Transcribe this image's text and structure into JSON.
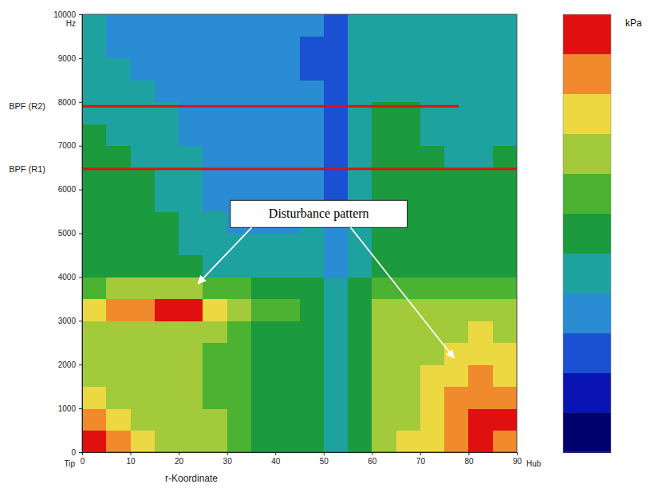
{
  "chart_data": {
    "type": "heatmap",
    "x_label": "r-Koordinate",
    "y_label": "Hz",
    "colorbar_label": "kPa",
    "axis_end_labels": {
      "start": "Tip",
      "end": "Hub"
    },
    "xlim": [
      0,
      90
    ],
    "xticks": [
      0,
      10,
      20,
      30,
      40,
      50,
      60,
      70,
      80,
      90
    ],
    "ylim": [
      0,
      10000
    ],
    "yticks": [
      0,
      1000,
      2000,
      3000,
      4000,
      5000,
      6000,
      7000,
      8000,
      9000,
      10000,
      {
        "value": 7900,
        "label": "BPF (R2)"
      },
      {
        "value": 6470,
        "label": "BPF (R1)"
      }
    ],
    "x_bins": [
      0,
      5,
      10,
      15,
      20,
      25,
      30,
      35,
      40,
      45,
      50,
      55,
      60,
      65,
      70,
      75,
      80,
      85,
      90
    ],
    "y_bins": [
      0,
      500,
      1000,
      1500,
      2000,
      2500,
      3000,
      3500,
      4000,
      4500,
      5000,
      5500,
      6000,
      6500,
      7000,
      7500,
      8000,
      8500,
      9000,
      9500,
      10000
    ],
    "cells": [
      [
        10,
        9,
        8,
        7,
        7,
        7,
        6,
        5,
        5,
        5,
        4,
        5,
        7,
        8,
        8,
        9,
        10,
        9
      ],
      [
        9,
        8,
        7,
        7,
        7,
        7,
        6,
        5,
        5,
        5,
        4,
        5,
        7,
        7,
        8,
        9,
        10,
        10
      ],
      [
        8,
        7,
        7,
        7,
        7,
        6,
        6,
        5,
        5,
        5,
        4,
        5,
        7,
        7,
        8,
        9,
        9,
        9
      ],
      [
        7,
        7,
        7,
        7,
        7,
        6,
        6,
        5,
        5,
        5,
        4,
        5,
        7,
        7,
        8,
        8,
        9,
        8
      ],
      [
        7,
        7,
        7,
        7,
        7,
        6,
        6,
        5,
        5,
        5,
        4,
        5,
        7,
        7,
        7,
        8,
        8,
        8
      ],
      [
        7,
        7,
        7,
        7,
        7,
        7,
        6,
        5,
        5,
        5,
        4,
        5,
        7,
        7,
        7,
        7,
        8,
        7
      ],
      [
        8,
        9,
        9,
        10,
        10,
        8,
        7,
        6,
        6,
        5,
        4,
        5,
        7,
        7,
        7,
        7,
        7,
        7
      ],
      [
        6,
        7,
        7,
        7,
        7,
        6,
        6,
        5,
        5,
        5,
        4,
        5,
        6,
        6,
        6,
        6,
        6,
        6
      ],
      [
        5,
        5,
        5,
        5,
        5,
        4,
        4,
        4,
        4,
        4,
        3,
        4,
        5,
        5,
        5,
        5,
        5,
        5
      ],
      [
        5,
        5,
        5,
        5,
        4,
        4,
        4,
        4,
        4,
        4,
        3,
        4,
        5,
        5,
        5,
        5,
        5,
        5
      ],
      [
        5,
        5,
        5,
        5,
        4,
        4,
        3,
        3,
        3,
        4,
        3,
        4,
        5,
        5,
        5,
        5,
        5,
        5
      ],
      [
        5,
        5,
        5,
        4,
        4,
        3,
        3,
        3,
        3,
        3,
        2,
        4,
        5,
        5,
        5,
        5,
        5,
        5
      ],
      [
        5,
        5,
        5,
        4,
        4,
        3,
        3,
        3,
        3,
        3,
        2,
        4,
        5,
        5,
        5,
        5,
        5,
        5
      ],
      [
        5,
        5,
        4,
        4,
        4,
        3,
        3,
        3,
        3,
        3,
        2,
        4,
        5,
        5,
        5,
        4,
        4,
        5
      ],
      [
        5,
        4,
        4,
        4,
        3,
        3,
        3,
        3,
        3,
        3,
        2,
        4,
        5,
        5,
        4,
        4,
        4,
        4
      ],
      [
        4,
        4,
        4,
        4,
        3,
        3,
        3,
        3,
        3,
        3,
        2,
        4,
        5,
        5,
        4,
        4,
        4,
        4
      ],
      [
        4,
        4,
        4,
        3,
        3,
        3,
        3,
        3,
        3,
        3,
        2,
        4,
        4,
        4,
        4,
        4,
        4,
        4
      ],
      [
        4,
        4,
        3,
        3,
        3,
        3,
        3,
        3,
        3,
        2,
        2,
        4,
        4,
        4,
        4,
        4,
        4,
        4
      ],
      [
        4,
        3,
        3,
        3,
        3,
        3,
        3,
        3,
        3,
        2,
        2,
        4,
        4,
        4,
        4,
        4,
        4,
        4
      ],
      [
        4,
        3,
        3,
        3,
        3,
        3,
        3,
        3,
        3,
        3,
        2,
        4,
        4,
        4,
        4,
        4,
        4,
        4
      ]
    ],
    "color_range": [
      0,
      10
    ],
    "tonal_lines": [
      {
        "y": 7900,
        "x": [
          0,
          78
        ],
        "value": 10
      },
      {
        "y": 6470,
        "x": [
          0,
          90
        ],
        "value": 10
      }
    ],
    "annotations": [
      {
        "text": "Disturbance pattern",
        "x": 49,
        "y": 5450,
        "arrows": [
          [
            24,
            3850
          ],
          [
            77,
            2150
          ]
        ]
      }
    ]
  }
}
